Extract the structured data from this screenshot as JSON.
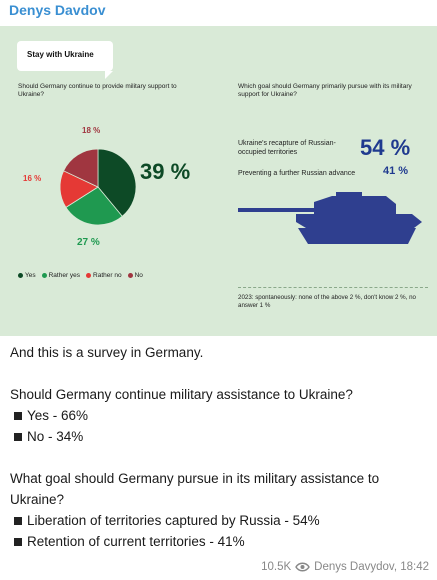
{
  "author": "Denys Davdov",
  "infographic": {
    "badge": "Stay with Ukraine",
    "question_left": "Should Germany continue to provide military support to Ukraine?",
    "question_right": "Which goal should Germany primarily pursue with its military support for Ukraine?",
    "pie": {
      "labels": {
        "yes": "39 %",
        "rather_yes": "27 %",
        "rather_no": "16 %",
        "no": "18 %"
      },
      "legend": [
        "Yes",
        "Rather yes",
        "Rather no",
        "No"
      ],
      "colors": {
        "yes": "#0d4a26",
        "rather_yes": "#1f9950",
        "rather_no": "#e53935",
        "no": "#a03640"
      }
    },
    "goals": [
      {
        "text": "Ukraine's recapture of Russian-occupied territories",
        "value": "54 %"
      },
      {
        "text": "Preventing a further Russian advance",
        "value": "41 %"
      }
    ],
    "footnote": "2023: spontaneously: none of the above 2 %, don't know 2 %, no answer 1 %",
    "tank_color": "#2f3f8f"
  },
  "chart_data": [
    {
      "type": "pie",
      "categories": [
        "Yes",
        "Rather yes",
        "Rather no",
        "No"
      ],
      "values": [
        39,
        27,
        16,
        18
      ]
    },
    {
      "type": "table",
      "categories": [
        "Ukraine's recapture of Russian-occupied territories",
        "Preventing a further Russian advance"
      ],
      "values": [
        54,
        41
      ]
    }
  ],
  "caption": {
    "intro": "And this is a survey in Germany.",
    "q1": "Should Germany continue military assistance to Ukraine?",
    "q1_answers": [
      "Yes - 66%",
      "No - 34%"
    ],
    "q2": "What goal should Germany pursue in its military assistance to Ukraine?",
    "q2_answers": [
      "Liberation of territories captured by Russia - 54%",
      "Retention of current territories - 41%"
    ]
  },
  "meta": {
    "views": "10.5K",
    "signature": "Denys Davydov, 18:42",
    "icon": "eye-icon"
  }
}
